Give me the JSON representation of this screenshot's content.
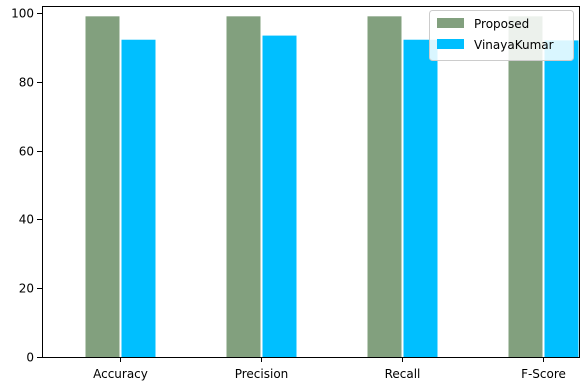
{
  "chart_data": {
    "type": "bar",
    "title": "",
    "xlabel": "",
    "ylabel": "",
    "categories": [
      "Accuracy",
      "Precision",
      "Recall",
      "F-Score"
    ],
    "series": [
      {
        "name": "Proposed",
        "color": "#82a07e",
        "values": [
          99,
          99,
          99,
          99
        ]
      },
      {
        "name": "VinayaKumar",
        "color": "#00bfff",
        "values": [
          92.2,
          93.4,
          92.2,
          92.0
        ]
      }
    ],
    "ylim": [
      0,
      102
    ],
    "yticks": [
      0,
      20,
      40,
      60,
      80,
      100
    ],
    "grid": false,
    "legend": "top-right"
  }
}
